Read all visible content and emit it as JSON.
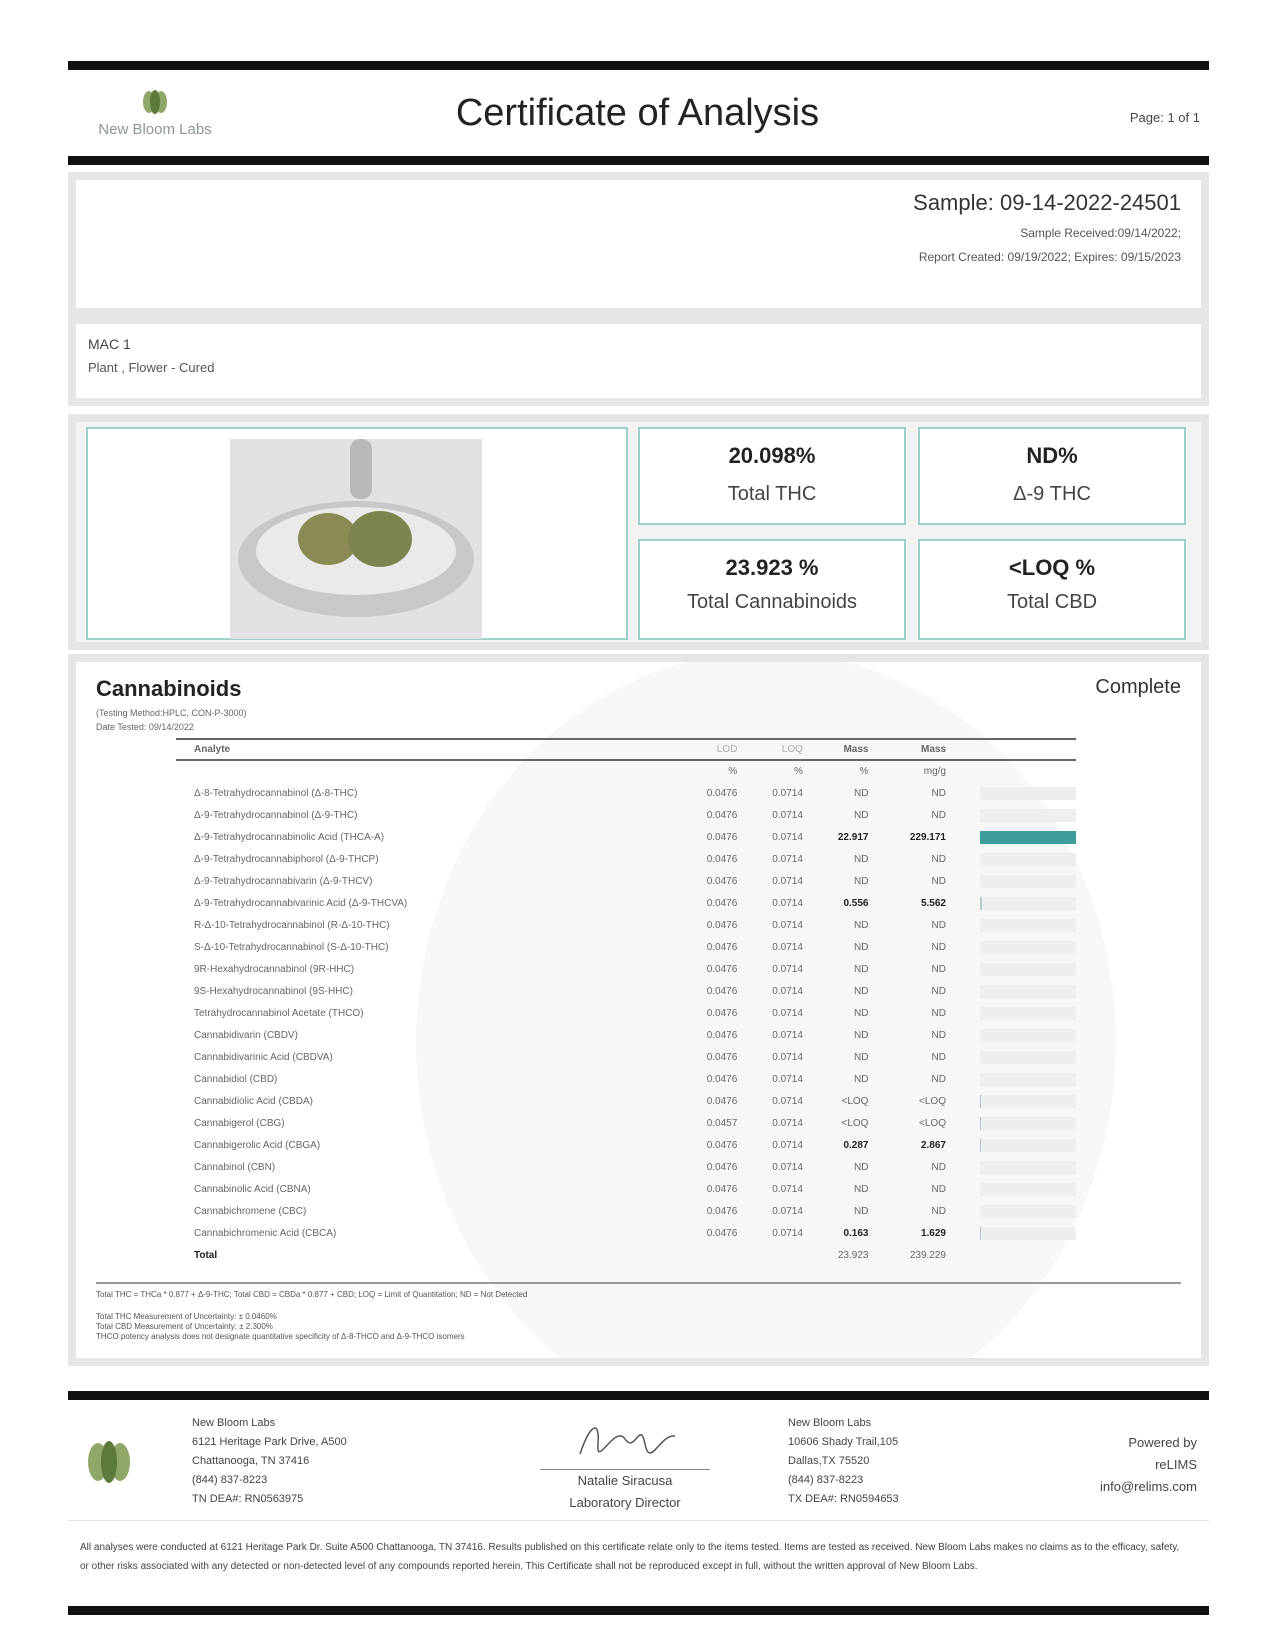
{
  "header": {
    "lab_name": "New Bloom Labs",
    "title": "Certificate of Analysis",
    "page": "Page: 1 of 1"
  },
  "sample": {
    "id": "Sample: 09-14-2022-24501",
    "received": "Sample Received:09/14/2022;",
    "report": "Report Created: 09/19/2022; Expires: 09/15/2023"
  },
  "product": {
    "name": "MAC 1",
    "type": "Plant , Flower - Cured"
  },
  "metrics": [
    {
      "value": "20.098%",
      "label": "Total THC"
    },
    {
      "value": "ND%",
      "label": "Δ-9 THC"
    },
    {
      "value": "23.923 %",
      "label": "Total Cannabinoids"
    },
    {
      "value": "<LOQ %",
      "label": "Total CBD"
    }
  ],
  "cannabinoids": {
    "title": "Cannabinoids",
    "status": "Complete",
    "method": "(Testing Method:HPLC, CON-P-3000)",
    "date_tested": "Date Tested: 09/14/2022",
    "columns": [
      "Analyte",
      "LOD",
      "LOQ",
      "Mass",
      "Mass"
    ],
    "units": [
      "",
      "%",
      "%",
      "%",
      "mg/g"
    ],
    "bar_color": "#3e9d98",
    "rows": [
      [
        "Δ-8-Tetrahydrocannabinol (Δ-8-THC)",
        "0.0476",
        "0.0714",
        "ND",
        "ND"
      ],
      [
        "Δ-9-Tetrahydrocannabinol (Δ-9-THC)",
        "0.0476",
        "0.0714",
        "ND",
        "ND"
      ],
      [
        "Δ-9-Tetrahydrocannabinolic Acid (THCA-A)",
        "0.0476",
        "0.0714",
        "22.917",
        "229.171"
      ],
      [
        "Δ-9-Tetrahydrocannabiphorol (Δ-9-THCP)",
        "0.0476",
        "0.0714",
        "ND",
        "ND"
      ],
      [
        "Δ-9-Tetrahydrocannabivarin (Δ-9-THCV)",
        "0.0476",
        "0.0714",
        "ND",
        "ND"
      ],
      [
        "Δ-9-Tetrahydrocannabivarinic Acid (Δ-9-THCVA)",
        "0.0476",
        "0.0714",
        "0.556",
        "5.562"
      ],
      [
        "R-Δ-10-Tetrahydrocannabinol (R-Δ-10-THC)",
        "0.0476",
        "0.0714",
        "ND",
        "ND"
      ],
      [
        "S-Δ-10-Tetrahydrocannabinol (S-Δ-10-THC)",
        "0.0476",
        "0.0714",
        "ND",
        "ND"
      ],
      [
        "9R-Hexahydrocannabinol (9R-HHC)",
        "0.0476",
        "0.0714",
        "ND",
        "ND"
      ],
      [
        "9S-Hexahydrocannabinol (9S-HHC)",
        "0.0476",
        "0.0714",
        "ND",
        "ND"
      ],
      [
        "Tetrahydrocannabinol Acetate (THCO)",
        "0.0476",
        "0.0714",
        "ND",
        "ND"
      ],
      [
        "Cannabidivarin (CBDV)",
        "0.0476",
        "0.0714",
        "ND",
        "ND"
      ],
      [
        "Cannabidivarinic Acid (CBDVA)",
        "0.0476",
        "0.0714",
        "ND",
        "ND"
      ],
      [
        "Cannabidiol (CBD)",
        "0.0476",
        "0.0714",
        "ND",
        "ND"
      ],
      [
        "Cannabidiolic Acid (CBDA)",
        "0.0476",
        "0.0714",
        "<LOQ",
        "<LOQ"
      ],
      [
        "Cannabigerol (CBG)",
        "0.0457",
        "0.0714",
        "<LOQ",
        "<LOQ"
      ],
      [
        "Cannabigerolic Acid (CBGA)",
        "0.0476",
        "0.0714",
        "0.287",
        "2.867"
      ],
      [
        "Cannabinol (CBN)",
        "0.0476",
        "0.0714",
        "ND",
        "ND"
      ],
      [
        "Cannabinolic Acid (CBNA)",
        "0.0476",
        "0.0714",
        "ND",
        "ND"
      ],
      [
        "Cannabichromene (CBC)",
        "0.0476",
        "0.0714",
        "ND",
        "ND"
      ],
      [
        "Cannabichromenic Acid (CBCA)",
        "0.0476",
        "0.0714",
        "0.163",
        "1.629"
      ]
    ],
    "total": [
      "Total",
      "",
      "",
      "23.923",
      "239.229"
    ],
    "formula": "Total THC = THCa * 0.877 + Δ-9-THC; Total CBD = CBDa * 0.877 + CBD; LOQ = Limit of Quantitation; ND = Not Detected",
    "notes": [
      "Total THC Measurement of Uncertainty: ± 0.0460%",
      "Total CBD Measurement of Uncertainty: ± 2.300%",
      "THCO potency analysis does not designate quantitative specificity of Δ-8-THCO and Δ-9-THCO isomers"
    ]
  },
  "footer": {
    "lab1": [
      "New Bloom Labs",
      "6121 Heritage Park Drive, A500",
      "Chattanooga, TN 37416",
      "(844) 837-8223",
      "TN DEA#: RN0563975"
    ],
    "signatory_name": "Natalie Siracusa",
    "signatory_title": "Laboratory Director",
    "lab2": [
      "New Bloom Labs",
      "10606 Shady Trail,105",
      "Dallas,TX 75520",
      "(844) 837-8223",
      "TX DEA#: RN0594653"
    ],
    "powered": [
      "Powered by",
      "reLIMS",
      "info@relims.com"
    ],
    "disclaimer": "All analyses were conducted at 6121 Heritage Park Dr. Suite A500 Chattanooga, TN 37416. Results published on this certificate relate only to the items tested. Items are tested as received. New Bloom Labs makes no claims as to the efficacy, safety, or other risks associated with any detected or non-detected level of any compounds reported herein. This Certificate shall not be reproduced except in full, without the written approval of New Bloom Labs."
  }
}
